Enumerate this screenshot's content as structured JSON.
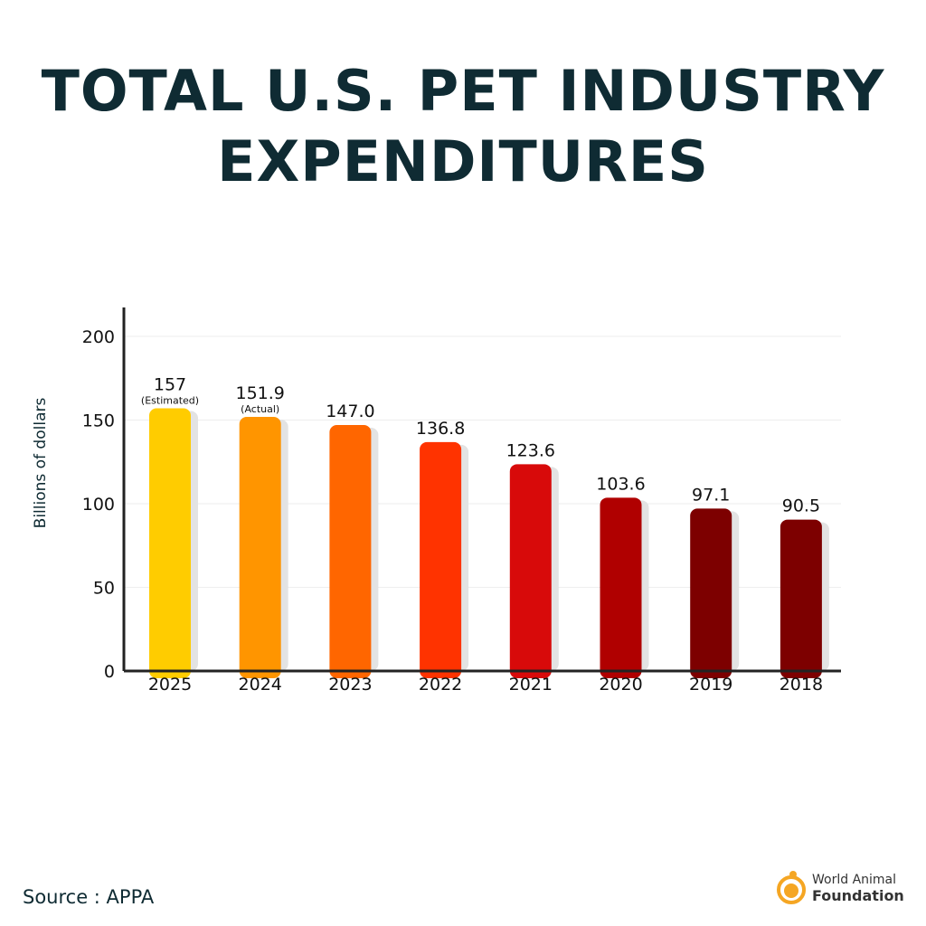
{
  "title": [
    "TOTAL U.S. PET INDUSTRY",
    "EXPENDITURES"
  ],
  "chart_data": {
    "type": "bar",
    "title": "TOTAL U.S. PET INDUSTRY EXPENDITURES",
    "ylabel": "Billions of dollars",
    "xlabel": "",
    "ylim": [
      0,
      200
    ],
    "yticks": [
      0,
      50,
      100,
      150,
      200
    ],
    "grid": true,
    "categories": [
      "2025",
      "2024",
      "2023",
      "2022",
      "2021",
      "2020",
      "2019",
      "2018"
    ],
    "values": [
      157,
      151.9,
      147.0,
      136.8,
      123.6,
      103.6,
      97.1,
      90.5
    ],
    "data_labels": [
      "157",
      "151.9",
      "147.0",
      "136.8",
      "123.6",
      "103.6",
      "97.1",
      "90.5"
    ],
    "annotations": [
      "(Estimated)",
      "(Actual)",
      "",
      "",
      "",
      "",
      "",
      ""
    ],
    "colors": [
      "#FFCC00",
      "#FF9500",
      "#FF6600",
      "#FF3300",
      "#D80A0A",
      "#B00000",
      "#7D0000",
      "#7D0000"
    ]
  },
  "source": "Source : APPA",
  "logo": {
    "line1": "World Animal",
    "line2": "Foundation",
    "color": "#F5A623"
  }
}
